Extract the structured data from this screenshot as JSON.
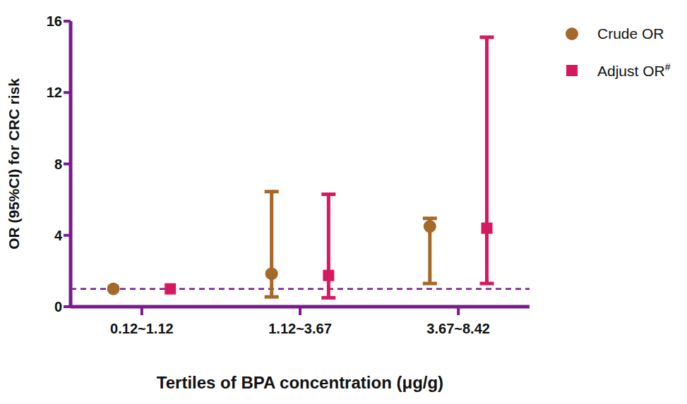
{
  "chart_data": {
    "type": "scatter",
    "y_label": "OR (95%CI) for CRC risk",
    "x_label": "Tertiles of BPA concentration (μg/g)",
    "categories": [
      "0.12~1.12",
      "1.12~3.67",
      "3.67~8.42"
    ],
    "series": [
      {
        "name": "Crude OR",
        "color": "#a5692a",
        "marker": "circle",
        "values": [
          1,
          1.85,
          4.5
        ],
        "ci_lower": [
          null,
          0.55,
          1.3
        ],
        "ci_upper": [
          null,
          6.45,
          4.95
        ]
      },
      {
        "name": "Adjust OR",
        "superscript": "#",
        "color": "#d6185e",
        "marker": "square",
        "values": [
          1,
          1.75,
          4.4
        ],
        "ci_lower": [
          null,
          0.5,
          1.3
        ],
        "ci_upper": [
          null,
          6.3,
          15.1
        ]
      }
    ],
    "ylim": [
      0,
      16
    ],
    "yticks": [
      0,
      4,
      8,
      12,
      16
    ],
    "reference_line": 1,
    "legend": "right"
  }
}
